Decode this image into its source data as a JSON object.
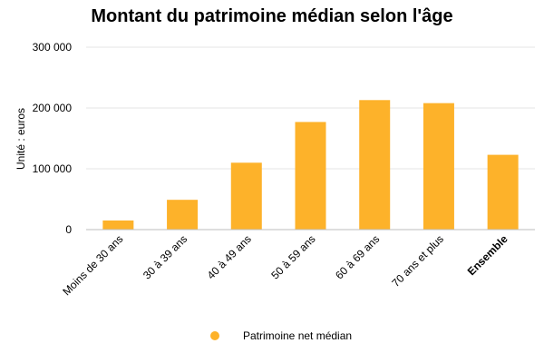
{
  "chart_data": {
    "type": "bar",
    "title": "Montant du patrimoine médian selon l'âge",
    "ylabel": "Unité : euros",
    "xlabel": "",
    "categories": [
      "Moins de 30 ans",
      "30 à 39 ans",
      "40 à 49 ans",
      "50 à 59 ans",
      "60 à 69 ans",
      "70 ans et plus",
      "Ensemble"
    ],
    "bold_categories": [
      "Ensemble"
    ],
    "series": [
      {
        "name": "Patrimoine net médian",
        "values": [
          15000,
          49000,
          110000,
          177000,
          213000,
          208000,
          123000
        ]
      }
    ],
    "ylim": [
      0,
      300000
    ],
    "yticks": [
      0,
      100000,
      200000,
      300000
    ],
    "ytick_labels": [
      "0",
      "100 000",
      "200 000",
      "300 000"
    ],
    "grid": true,
    "legend_position": "bottom",
    "colors": {
      "bar": "#FDB22A",
      "grid": "#e6e6e6"
    }
  }
}
